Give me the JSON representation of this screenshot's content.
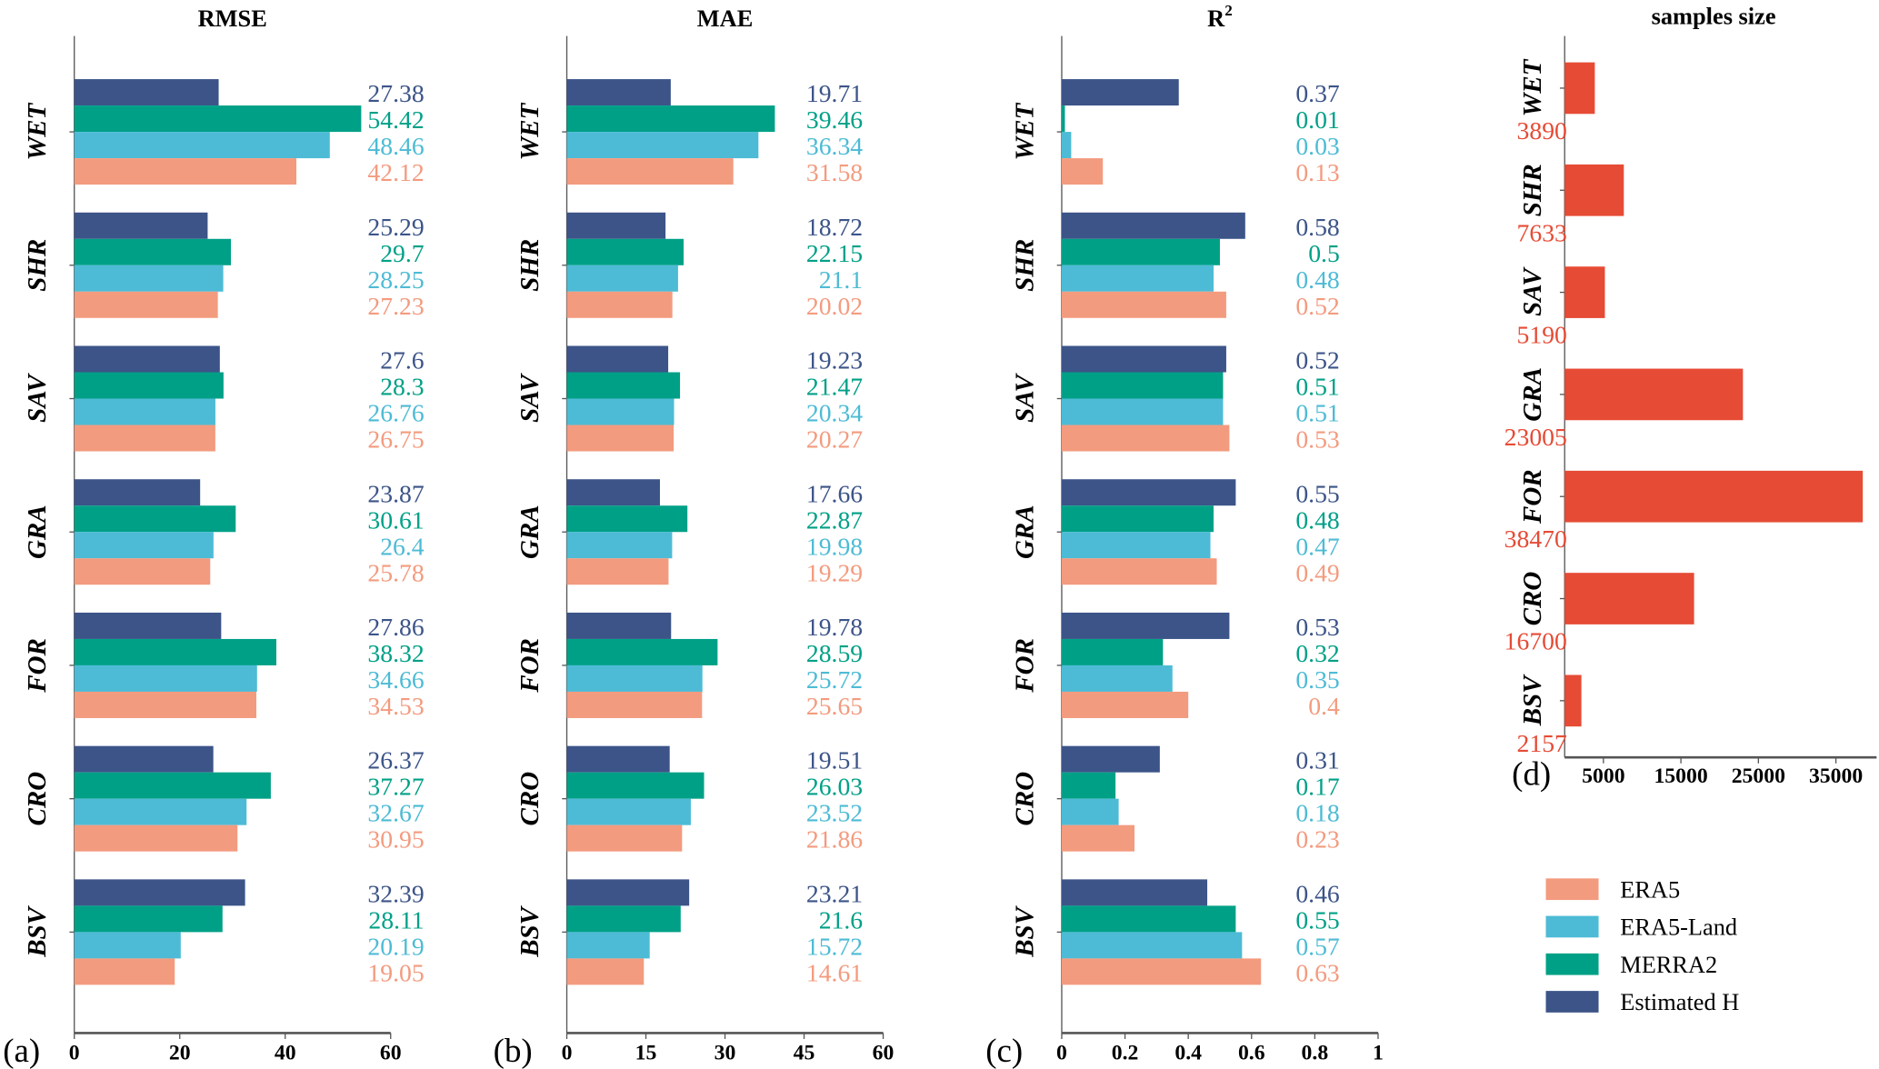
{
  "colors": {
    "ERA5": "#f39b7f",
    "ERA5-Land": "#4dbbd5",
    "MERRA2": "#00a087",
    "Estimated H": "#3c5488",
    "samples": "#e64b35",
    "axis": "#555555"
  },
  "legend": [
    "ERA5",
    "ERA5-Land",
    "MERRA2",
    "Estimated H"
  ],
  "chart_data": [
    {
      "type": "bar",
      "panel": "(a)",
      "title": "RMSE",
      "xlim": [
        0,
        60
      ],
      "xticks": [
        "0",
        "20",
        "40",
        "60"
      ],
      "categories": [
        "WET",
        "SHR",
        "SAV",
        "GRA",
        "FOR",
        "CRO",
        "BSV"
      ],
      "series": [
        {
          "name": "Estimated H",
          "values": [
            27.38,
            25.29,
            27.6,
            23.87,
            27.86,
            26.37,
            32.39
          ]
        },
        {
          "name": "MERRA2",
          "values": [
            54.42,
            29.7,
            28.3,
            30.61,
            38.32,
            37.27,
            28.11
          ]
        },
        {
          "name": "ERA5-Land",
          "values": [
            48.46,
            28.25,
            26.76,
            26.4,
            34.66,
            32.67,
            20.19
          ]
        },
        {
          "name": "ERA5",
          "values": [
            42.12,
            27.23,
            26.75,
            25.78,
            34.53,
            30.95,
            19.05
          ]
        }
      ]
    },
    {
      "type": "bar",
      "panel": "(b)",
      "title": "MAE",
      "xlim": [
        0,
        60
      ],
      "xticks": [
        "0",
        "15",
        "30",
        "45",
        "60"
      ],
      "categories": [
        "WET",
        "SHR",
        "SAV",
        "GRA",
        "FOR",
        "CRO",
        "BSV"
      ],
      "series": [
        {
          "name": "Estimated H",
          "values": [
            19.71,
            18.72,
            19.23,
            17.66,
            19.78,
            19.51,
            23.21
          ]
        },
        {
          "name": "MERRA2",
          "values": [
            39.46,
            22.15,
            21.47,
            22.87,
            28.59,
            26.03,
            21.6
          ]
        },
        {
          "name": "ERA5-Land",
          "values": [
            36.34,
            21.1,
            20.34,
            19.98,
            25.72,
            23.52,
            15.72
          ]
        },
        {
          "name": "ERA5",
          "values": [
            31.58,
            20.02,
            20.27,
            19.29,
            25.65,
            21.86,
            14.61
          ]
        }
      ]
    },
    {
      "type": "bar",
      "panel": "(c)",
      "title": "R",
      "title_sup": "2",
      "xlim": [
        0,
        1
      ],
      "xticks": [
        "0",
        "0.2",
        "0.4",
        "0.6",
        "0.8",
        "1"
      ],
      "categories": [
        "WET",
        "SHR",
        "SAV",
        "GRA",
        "FOR",
        "CRO",
        "BSV"
      ],
      "series": [
        {
          "name": "Estimated H",
          "values": [
            0.37,
            0.58,
            0.52,
            0.55,
            0.53,
            0.31,
            0.46
          ]
        },
        {
          "name": "MERRA2",
          "values": [
            0.01,
            0.5,
            0.51,
            0.48,
            0.32,
            0.17,
            0.55
          ]
        },
        {
          "name": "ERA5-Land",
          "values": [
            0.03,
            0.48,
            0.51,
            0.47,
            0.35,
            0.18,
            0.57
          ]
        },
        {
          "name": "ERA5",
          "values": [
            0.13,
            0.52,
            0.53,
            0.49,
            0.4,
            0.23,
            0.63
          ]
        }
      ]
    },
    {
      "type": "bar",
      "panel": "(d)",
      "title": "samples size",
      "xlim": [
        0,
        39000
      ],
      "xticks": [
        "5000",
        "15000",
        "25000",
        "35000"
      ],
      "xtick_values": [
        5000,
        15000,
        25000,
        35000
      ],
      "categories": [
        "WET",
        "SHR",
        "SAV",
        "GRA",
        "FOR",
        "CRO",
        "BSV"
      ],
      "values": [
        3890,
        7633,
        5190,
        23005,
        38470,
        16700,
        2157
      ]
    }
  ]
}
